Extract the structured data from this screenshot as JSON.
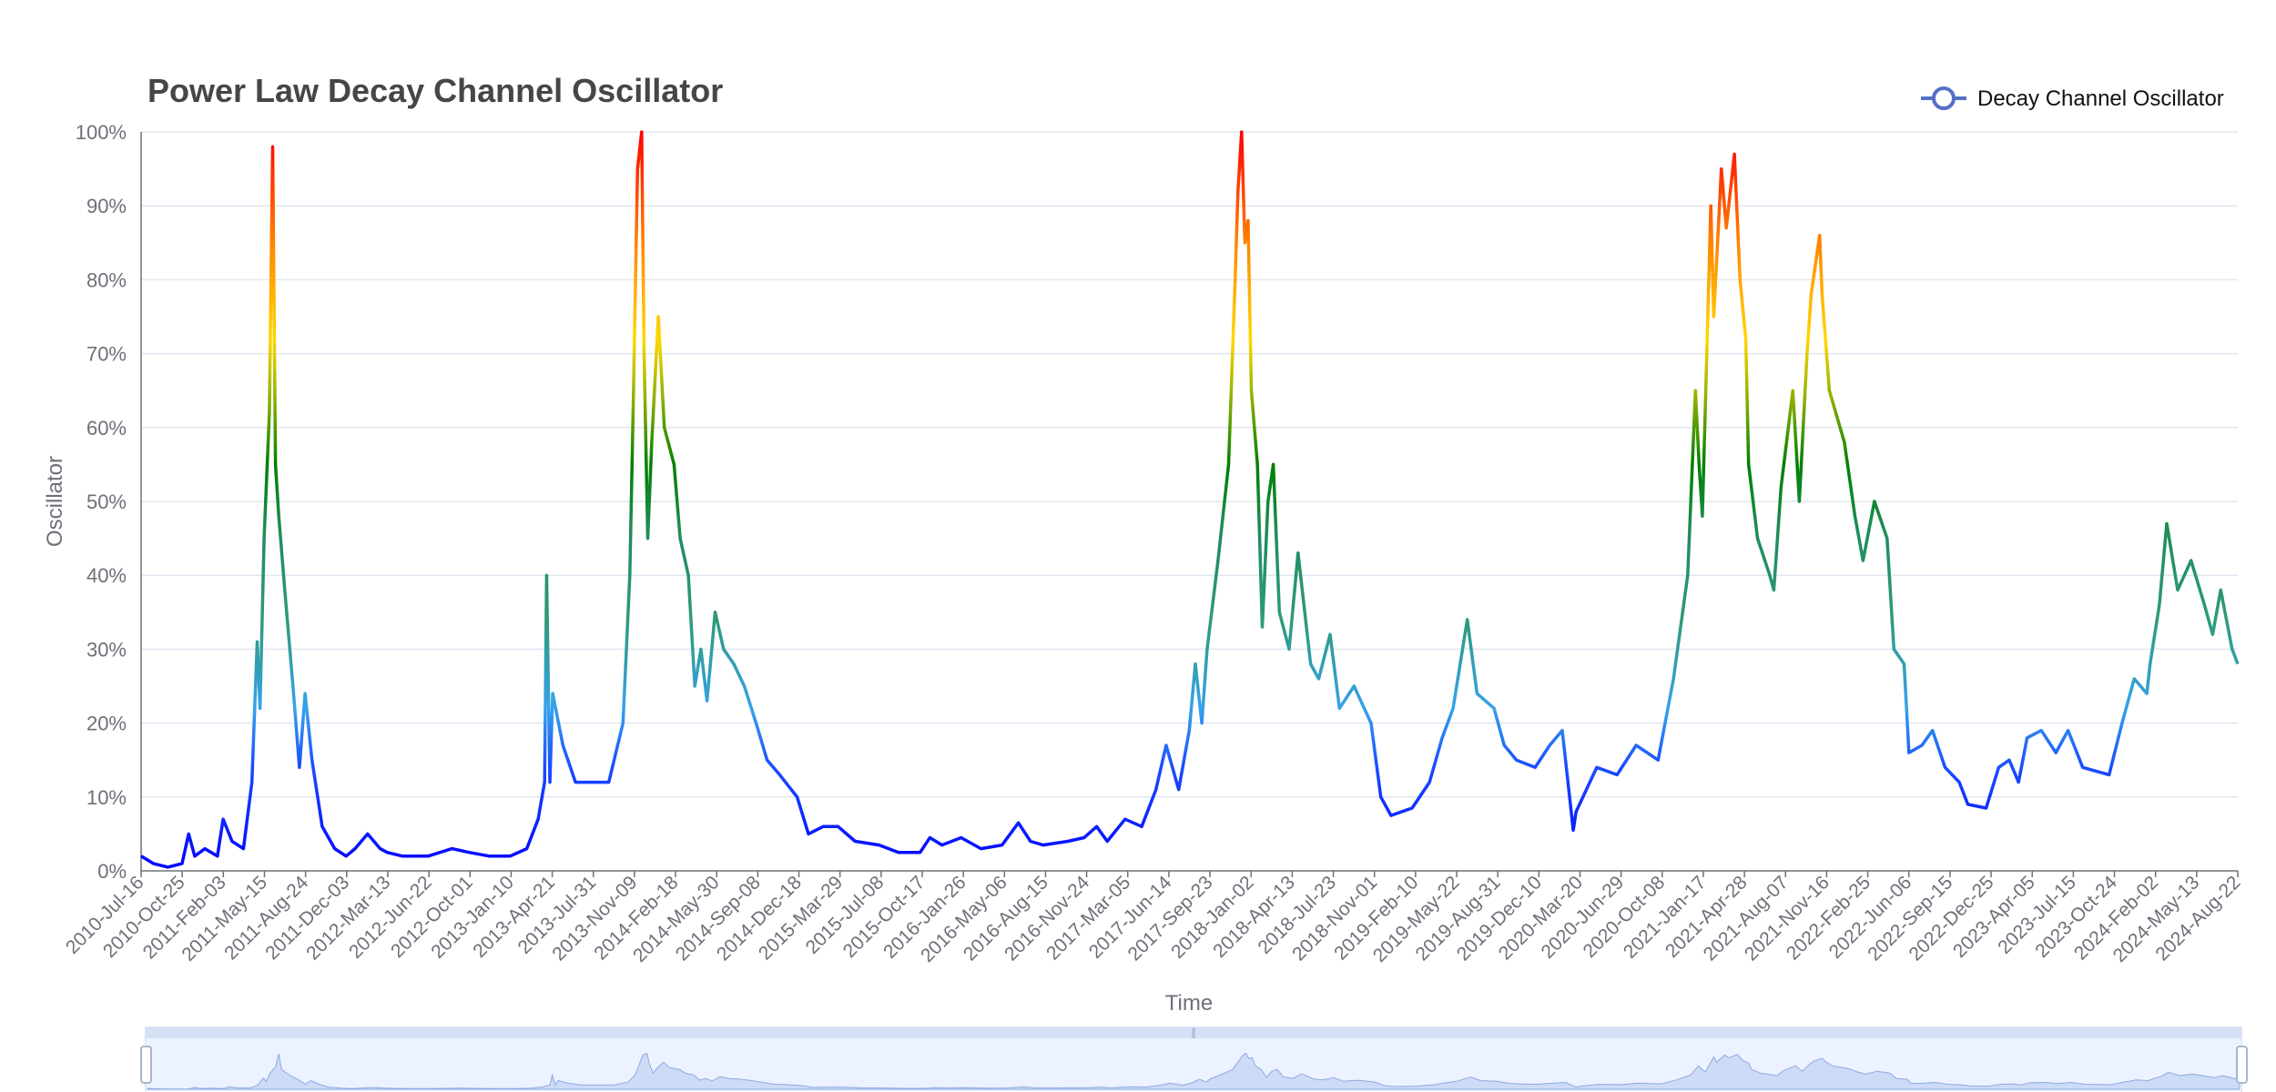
{
  "chart_data": {
    "type": "line",
    "title": "Power Law Decay Channel Oscillator",
    "xlabel": "Time",
    "ylabel": "Oscillator",
    "ylim": [
      0,
      1
    ],
    "y_ticks": [
      "0%",
      "10%",
      "20%",
      "30%",
      "40%",
      "50%",
      "60%",
      "70%",
      "80%",
      "90%",
      "100%"
    ],
    "x_ticks": [
      "2010-Jul-16",
      "2010-Oct-25",
      "2011-Feb-03",
      "2011-May-15",
      "2011-Aug-24",
      "2011-Dec-03",
      "2012-Mar-13",
      "2012-Jun-22",
      "2012-Oct-01",
      "2013-Jan-10",
      "2013-Apr-21",
      "2013-Jul-31",
      "2013-Nov-09",
      "2014-Feb-18",
      "2014-May-30",
      "2014-Sep-08",
      "2014-Dec-18",
      "2015-Mar-29",
      "2015-Jul-08",
      "2015-Oct-17",
      "2016-Jan-26",
      "2016-May-06",
      "2016-Aug-15",
      "2016-Nov-24",
      "2017-Mar-05",
      "2017-Jun-14",
      "2017-Sep-23",
      "2018-Jan-02",
      "2018-Apr-13",
      "2018-Jul-23",
      "2018-Nov-01",
      "2019-Feb-10",
      "2019-May-22",
      "2019-Aug-31",
      "2019-Dec-10",
      "2020-Mar-20",
      "2020-Jun-29",
      "2020-Oct-08",
      "2021-Jan-17",
      "2021-Apr-28",
      "2021-Aug-07",
      "2021-Nov-16",
      "2022-Feb-25",
      "2022-Jun-06",
      "2022-Sep-15",
      "2022-Dec-25",
      "2023-Apr-05",
      "2023-Jul-15",
      "2023-Oct-24",
      "2024-Feb-02",
      "2024-May-13",
      "2024-Aug-22"
    ],
    "grid": true,
    "legend_position": "top-right",
    "series": [
      {
        "name": "Decay Channel Oscillator",
        "color": "#5470c6",
        "gradient": [
          "#0000ff",
          "#1a8cff",
          "#36a2eb",
          "#2e8b57",
          "#008000",
          "#ffd700",
          "#ff8c00",
          "#ff0000"
        ],
        "points": [
          [
            "2010-07-16",
            0.02
          ],
          [
            "2010-08-15",
            0.01
          ],
          [
            "2010-09-20",
            0.005
          ],
          [
            "2010-10-25",
            0.01
          ],
          [
            "2010-11-10",
            0.05
          ],
          [
            "2010-11-25",
            0.02
          ],
          [
            "2010-12-20",
            0.03
          ],
          [
            "2011-01-20",
            0.02
          ],
          [
            "2011-02-03",
            0.07
          ],
          [
            "2011-02-25",
            0.04
          ],
          [
            "2011-03-25",
            0.03
          ],
          [
            "2011-04-15",
            0.12
          ],
          [
            "2011-04-28",
            0.31
          ],
          [
            "2011-05-05",
            0.22
          ],
          [
            "2011-05-15",
            0.45
          ],
          [
            "2011-05-28",
            0.62
          ],
          [
            "2011-06-05",
            0.98
          ],
          [
            "2011-06-12",
            0.55
          ],
          [
            "2011-06-20",
            0.48
          ],
          [
            "2011-07-05",
            0.38
          ],
          [
            "2011-07-25",
            0.25
          ],
          [
            "2011-08-10",
            0.14
          ],
          [
            "2011-08-24",
            0.24
          ],
          [
            "2011-09-10",
            0.15
          ],
          [
            "2011-10-05",
            0.06
          ],
          [
            "2011-11-05",
            0.03
          ],
          [
            "2011-12-03",
            0.02
          ],
          [
            "2011-12-25",
            0.03
          ],
          [
            "2012-01-25",
            0.05
          ],
          [
            "2012-02-25",
            0.03
          ],
          [
            "2012-03-13",
            0.025
          ],
          [
            "2012-04-20",
            0.02
          ],
          [
            "2012-06-22",
            0.02
          ],
          [
            "2012-08-20",
            0.03
          ],
          [
            "2012-10-01",
            0.025
          ],
          [
            "2012-11-20",
            0.02
          ],
          [
            "2013-01-10",
            0.02
          ],
          [
            "2013-02-20",
            0.03
          ],
          [
            "2013-03-20",
            0.07
          ],
          [
            "2013-04-05",
            0.12
          ],
          [
            "2013-04-10",
            0.4
          ],
          [
            "2013-04-18",
            0.12
          ],
          [
            "2013-04-25",
            0.24
          ],
          [
            "2013-05-20",
            0.17
          ],
          [
            "2013-06-20",
            0.12
          ],
          [
            "2013-07-31",
            0.12
          ],
          [
            "2013-09-10",
            0.12
          ],
          [
            "2013-10-15",
            0.2
          ],
          [
            "2013-11-01",
            0.4
          ],
          [
            "2013-11-09",
            0.62
          ],
          [
            "2013-11-20",
            0.95
          ],
          [
            "2013-11-30",
            1.0
          ],
          [
            "2013-12-06",
            0.7
          ],
          [
            "2013-12-15",
            0.45
          ],
          [
            "2013-12-25",
            0.58
          ],
          [
            "2014-01-10",
            0.75
          ],
          [
            "2014-01-25",
            0.6
          ],
          [
            "2014-02-18",
            0.55
          ],
          [
            "2014-03-05",
            0.45
          ],
          [
            "2014-03-25",
            0.4
          ],
          [
            "2014-04-10",
            0.25
          ],
          [
            "2014-04-25",
            0.3
          ],
          [
            "2014-05-10",
            0.23
          ],
          [
            "2014-05-30",
            0.35
          ],
          [
            "2014-06-20",
            0.3
          ],
          [
            "2014-07-15",
            0.28
          ],
          [
            "2014-08-10",
            0.25
          ],
          [
            "2014-09-08",
            0.2
          ],
          [
            "2014-10-05",
            0.15
          ],
          [
            "2014-11-05",
            0.13
          ],
          [
            "2014-12-18",
            0.1
          ],
          [
            "2015-01-15",
            0.05
          ],
          [
            "2015-02-20",
            0.06
          ],
          [
            "2015-03-29",
            0.06
          ],
          [
            "2015-05-10",
            0.04
          ],
          [
            "2015-07-08",
            0.035
          ],
          [
            "2015-08-25",
            0.025
          ],
          [
            "2015-10-17",
            0.025
          ],
          [
            "2015-11-10",
            0.045
          ],
          [
            "2015-12-10",
            0.035
          ],
          [
            "2016-01-26",
            0.045
          ],
          [
            "2016-03-15",
            0.03
          ],
          [
            "2016-05-06",
            0.035
          ],
          [
            "2016-06-15",
            0.065
          ],
          [
            "2016-07-15",
            0.04
          ],
          [
            "2016-08-15",
            0.035
          ],
          [
            "2016-10-15",
            0.04
          ],
          [
            "2016-11-24",
            0.045
          ],
          [
            "2016-12-25",
            0.06
          ],
          [
            "2017-01-20",
            0.04
          ],
          [
            "2017-03-05",
            0.07
          ],
          [
            "2017-04-15",
            0.06
          ],
          [
            "2017-05-20",
            0.11
          ],
          [
            "2017-06-14",
            0.17
          ],
          [
            "2017-07-15",
            0.11
          ],
          [
            "2017-08-10",
            0.19
          ],
          [
            "2017-08-25",
            0.28
          ],
          [
            "2017-09-10",
            0.2
          ],
          [
            "2017-09-23",
            0.3
          ],
          [
            "2017-10-20",
            0.42
          ],
          [
            "2017-11-15",
            0.55
          ],
          [
            "2017-12-01",
            0.8
          ],
          [
            "2017-12-08",
            0.92
          ],
          [
            "2017-12-17",
            1.0
          ],
          [
            "2017-12-25",
            0.85
          ],
          [
            "2018-01-02",
            0.88
          ],
          [
            "2018-01-10",
            0.65
          ],
          [
            "2018-01-25",
            0.55
          ],
          [
            "2018-02-06",
            0.33
          ],
          [
            "2018-02-20",
            0.5
          ],
          [
            "2018-03-05",
            0.55
          ],
          [
            "2018-03-20",
            0.35
          ],
          [
            "2018-04-13",
            0.3
          ],
          [
            "2018-05-05",
            0.43
          ],
          [
            "2018-06-05",
            0.28
          ],
          [
            "2018-06-25",
            0.26
          ],
          [
            "2018-07-23",
            0.32
          ],
          [
            "2018-08-15",
            0.22
          ],
          [
            "2018-09-20",
            0.25
          ],
          [
            "2018-11-01",
            0.2
          ],
          [
            "2018-11-25",
            0.1
          ],
          [
            "2018-12-20",
            0.075
          ],
          [
            "2019-02-10",
            0.085
          ],
          [
            "2019-03-25",
            0.12
          ],
          [
            "2019-04-25",
            0.18
          ],
          [
            "2019-05-22",
            0.22
          ],
          [
            "2019-06-26",
            0.34
          ],
          [
            "2019-07-20",
            0.24
          ],
          [
            "2019-08-31",
            0.22
          ],
          [
            "2019-09-25",
            0.17
          ],
          [
            "2019-10-25",
            0.15
          ],
          [
            "2019-12-10",
            0.14
          ],
          [
            "2020-01-15",
            0.17
          ],
          [
            "2020-02-15",
            0.19
          ],
          [
            "2020-03-13",
            0.055
          ],
          [
            "2020-03-20",
            0.08
          ],
          [
            "2020-05-10",
            0.14
          ],
          [
            "2020-06-29",
            0.13
          ],
          [
            "2020-08-15",
            0.17
          ],
          [
            "2020-10-08",
            0.15
          ],
          [
            "2020-11-15",
            0.26
          ],
          [
            "2020-12-20",
            0.4
          ],
          [
            "2021-01-08",
            0.65
          ],
          [
            "2021-01-17",
            0.55
          ],
          [
            "2021-01-25",
            0.48
          ],
          [
            "2021-02-15",
            0.9
          ],
          [
            "2021-02-22",
            0.75
          ],
          [
            "2021-03-13",
            0.95
          ],
          [
            "2021-03-25",
            0.87
          ],
          [
            "2021-04-14",
            0.97
          ],
          [
            "2021-04-28",
            0.8
          ],
          [
            "2021-05-12",
            0.72
          ],
          [
            "2021-05-19",
            0.55
          ],
          [
            "2021-06-10",
            0.45
          ],
          [
            "2021-06-22",
            0.43
          ],
          [
            "2021-07-10",
            0.4
          ],
          [
            "2021-07-20",
            0.38
          ],
          [
            "2021-08-07",
            0.52
          ],
          [
            "2021-09-05",
            0.65
          ],
          [
            "2021-09-21",
            0.5
          ],
          [
            "2021-10-10",
            0.7
          ],
          [
            "2021-10-20",
            0.78
          ],
          [
            "2021-11-10",
            0.86
          ],
          [
            "2021-11-16",
            0.78
          ],
          [
            "2021-12-04",
            0.65
          ],
          [
            "2022-01-10",
            0.58
          ],
          [
            "2022-02-05",
            0.48
          ],
          [
            "2022-02-25",
            0.42
          ],
          [
            "2022-03-25",
            0.5
          ],
          [
            "2022-04-25",
            0.45
          ],
          [
            "2022-05-12",
            0.3
          ],
          [
            "2022-06-06",
            0.28
          ],
          [
            "2022-06-18",
            0.16
          ],
          [
            "2022-07-20",
            0.17
          ],
          [
            "2022-08-15",
            0.19
          ],
          [
            "2022-09-15",
            0.14
          ],
          [
            "2022-10-20",
            0.12
          ],
          [
            "2022-11-10",
            0.09
          ],
          [
            "2022-12-25",
            0.085
          ],
          [
            "2023-01-25",
            0.14
          ],
          [
            "2023-02-20",
            0.15
          ],
          [
            "2023-03-15",
            0.12
          ],
          [
            "2023-04-05",
            0.18
          ],
          [
            "2023-05-10",
            0.19
          ],
          [
            "2023-06-15",
            0.16
          ],
          [
            "2023-07-15",
            0.19
          ],
          [
            "2023-08-20",
            0.14
          ],
          [
            "2023-10-24",
            0.13
          ],
          [
            "2023-11-25",
            0.2
          ],
          [
            "2023-12-25",
            0.26
          ],
          [
            "2024-01-25",
            0.24
          ],
          [
            "2024-02-02",
            0.28
          ],
          [
            "2024-02-25",
            0.36
          ],
          [
            "2024-03-14",
            0.47
          ],
          [
            "2024-04-10",
            0.38
          ],
          [
            "2024-05-13",
            0.42
          ],
          [
            "2024-06-15",
            0.36
          ],
          [
            "2024-07-05",
            0.32
          ],
          [
            "2024-07-25",
            0.38
          ],
          [
            "2024-08-22",
            0.3
          ],
          [
            "2024-09-05",
            0.28
          ]
        ]
      }
    ]
  },
  "data_zoom": {
    "handle_label": "∥",
    "start": 0,
    "end": 1
  }
}
